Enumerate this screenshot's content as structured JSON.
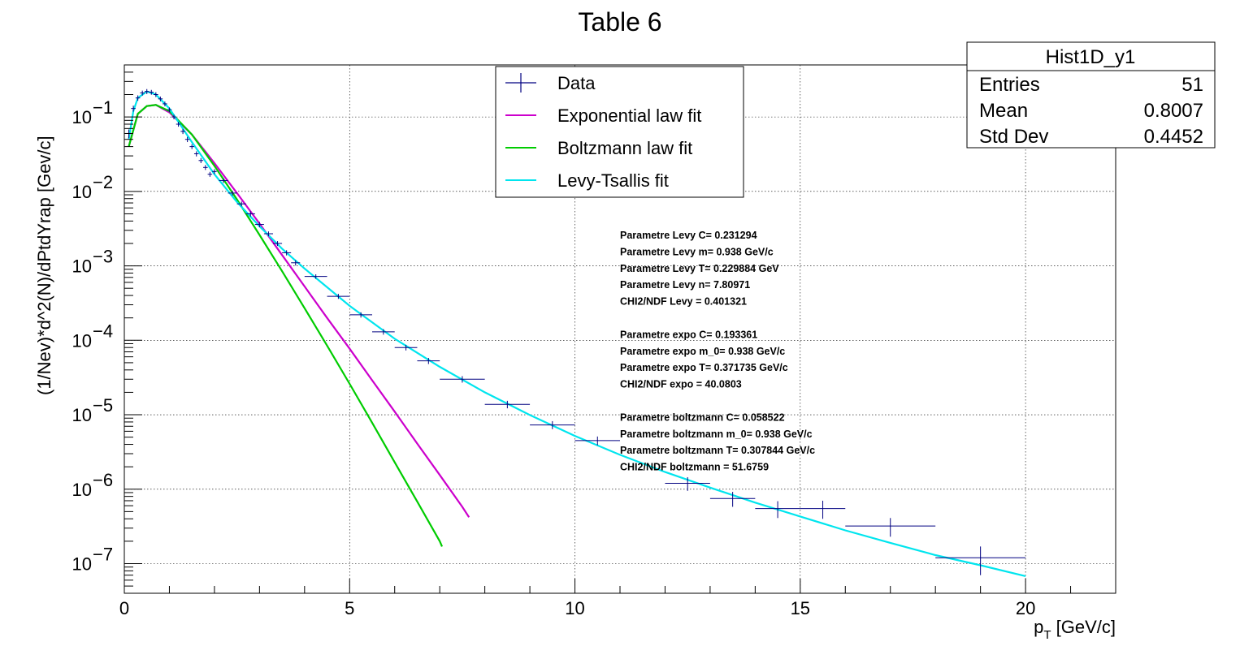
{
  "chart_data": {
    "type": "scatter",
    "title": "Table 6",
    "xlabel": "p",
    "xlabel_sub": "T",
    "xlabel_unit": " [GeV/c]",
    "ylabel": "(1/Nev)*d^2(N)/dPtdYrap  [Gev/c]",
    "xlim": [
      0,
      22
    ],
    "ylim": [
      4e-08,
      0.5
    ],
    "yscale": "log",
    "grid": true,
    "x_ticks": [
      0,
      5,
      10,
      15,
      20
    ],
    "x_tick_labels": [
      "0",
      "5",
      "10",
      "15",
      "20"
    ],
    "y_ticks": [
      1e-07,
      1e-06,
      1e-05,
      0.0001,
      0.001,
      0.01,
      0.1
    ],
    "y_tick_mantissa": [
      "10",
      "10",
      "10",
      "10",
      "10",
      "10",
      "10"
    ],
    "y_tick_exponents": [
      "−7",
      "−6",
      "−5",
      "−4",
      "−3",
      "−2",
      "−1"
    ],
    "legend": {
      "position": "top-center",
      "entries": [
        {
          "label": "Data",
          "color": "#000080",
          "kind": "marker"
        },
        {
          "label": "Exponential law fit",
          "color": "#cc00cc",
          "kind": "line"
        },
        {
          "label": "Boltzmann law fit",
          "color": "#00cc00",
          "kind": "line"
        },
        {
          "label": "Levy-Tsallis fit",
          "color": "#00e5ee",
          "kind": "line"
        }
      ]
    },
    "stats_box": {
      "title": "Hist1D_y1",
      "rows": [
        {
          "label": "Entries",
          "value": "51"
        },
        {
          "label": "Mean",
          "value": "0.8007"
        },
        {
          "label": "Std Dev",
          "value": "0.4452"
        }
      ]
    },
    "annotations": [
      "Parametre Levy C= 0.231294",
      "Parametre Levy m= 0.938 GeV/c",
      "Parametre Levy T= 0.229884 GeV",
      "Parametre Levy n= 7.80971",
      "CHI2/NDF Levy = 0.401321",
      "",
      "Parametre expo C= 0.193361",
      "Parametre expo m_0= 0.938 GeV/c",
      "Parametre expo T= 0.371735 GeV/c",
      "CHI2/NDF expo = 40.0803",
      "",
      "Parametre boltzmann C= 0.058522",
      "Parametre boltzmann m_0= 0.938 GeV/c",
      "Parametre boltzmann T= 0.307844 GeV/c",
      "CHI2/NDF boltzmann = 51.6759"
    ],
    "series": [
      {
        "name": "Data",
        "type": "errorbar",
        "color": "#000080",
        "points": [
          {
            "x": 0.1,
            "xerr": 0.05,
            "y": 0.06,
            "yerr": 0.008
          },
          {
            "x": 0.2,
            "xerr": 0.05,
            "y": 0.13,
            "yerr": 0.012
          },
          {
            "x": 0.3,
            "xerr": 0.05,
            "y": 0.18,
            "yerr": 0.015
          },
          {
            "x": 0.4,
            "xerr": 0.05,
            "y": 0.21,
            "yerr": 0.016
          },
          {
            "x": 0.5,
            "xerr": 0.05,
            "y": 0.22,
            "yerr": 0.017
          },
          {
            "x": 0.6,
            "xerr": 0.05,
            "y": 0.215,
            "yerr": 0.016
          },
          {
            "x": 0.7,
            "xerr": 0.05,
            "y": 0.2,
            "yerr": 0.015
          },
          {
            "x": 0.8,
            "xerr": 0.05,
            "y": 0.175,
            "yerr": 0.013
          },
          {
            "x": 0.9,
            "xerr": 0.05,
            "y": 0.15,
            "yerr": 0.011
          },
          {
            "x": 1.0,
            "xerr": 0.05,
            "y": 0.125,
            "yerr": 0.009
          },
          {
            "x": 1.1,
            "xerr": 0.05,
            "y": 0.1,
            "yerr": 0.007
          },
          {
            "x": 1.2,
            "xerr": 0.05,
            "y": 0.08,
            "yerr": 0.006
          },
          {
            "x": 1.3,
            "xerr": 0.05,
            "y": 0.064,
            "yerr": 0.005
          },
          {
            "x": 1.4,
            "xerr": 0.05,
            "y": 0.05,
            "yerr": 0.004
          },
          {
            "x": 1.5,
            "xerr": 0.05,
            "y": 0.04,
            "yerr": 0.003
          },
          {
            "x": 1.6,
            "xerr": 0.05,
            "y": 0.032,
            "yerr": 0.0025
          },
          {
            "x": 1.7,
            "xerr": 0.05,
            "y": 0.026,
            "yerr": 0.002
          },
          {
            "x": 1.8,
            "xerr": 0.05,
            "y": 0.021,
            "yerr": 0.0016
          },
          {
            "x": 1.9,
            "xerr": 0.05,
            "y": 0.017,
            "yerr": 0.0013
          },
          {
            "x": 2.0,
            "xerr": 0.05,
            "y": 0.0185,
            "yerr": 0.0014
          },
          {
            "x": 2.2,
            "xerr": 0.1,
            "y": 0.014,
            "yerr": 0.001
          },
          {
            "x": 2.4,
            "xerr": 0.1,
            "y": 0.0095,
            "yerr": 0.0007
          },
          {
            "x": 2.6,
            "xerr": 0.1,
            "y": 0.0068,
            "yerr": 0.0005
          },
          {
            "x": 2.8,
            "xerr": 0.1,
            "y": 0.005,
            "yerr": 0.0004
          },
          {
            "x": 3.0,
            "xerr": 0.1,
            "y": 0.0036,
            "yerr": 0.0003
          },
          {
            "x": 3.2,
            "xerr": 0.1,
            "y": 0.0027,
            "yerr": 0.0002
          },
          {
            "x": 3.4,
            "xerr": 0.1,
            "y": 0.002,
            "yerr": 0.00015
          },
          {
            "x": 3.6,
            "xerr": 0.1,
            "y": 0.0015,
            "yerr": 0.00012
          },
          {
            "x": 3.8,
            "xerr": 0.1,
            "y": 0.0011,
            "yerr": 9e-05
          },
          {
            "x": 4.25,
            "xerr": 0.25,
            "y": 0.00072,
            "yerr": 5e-05
          },
          {
            "x": 4.75,
            "xerr": 0.25,
            "y": 0.00039,
            "yerr": 3e-05
          },
          {
            "x": 5.25,
            "xerr": 0.25,
            "y": 0.00022,
            "yerr": 1.8e-05
          },
          {
            "x": 5.75,
            "xerr": 0.25,
            "y": 0.00013,
            "yerr": 1.1e-05
          },
          {
            "x": 6.25,
            "xerr": 0.25,
            "y": 8e-05,
            "yerr": 7e-06
          },
          {
            "x": 6.75,
            "xerr": 0.25,
            "y": 5.3e-05,
            "yerr": 5e-06
          },
          {
            "x": 7.5,
            "xerr": 0.5,
            "y": 3e-05,
            "yerr": 3e-06
          },
          {
            "x": 8.5,
            "xerr": 0.5,
            "y": 1.38e-05,
            "yerr": 1.6e-06
          },
          {
            "x": 9.5,
            "xerr": 0.5,
            "y": 7.3e-06,
            "yerr": 9e-07
          },
          {
            "x": 10.5,
            "xerr": 0.5,
            "y": 4.5e-06,
            "yerr": 6e-07
          },
          {
            "x": 12.5,
            "xerr": 0.5,
            "y": 1.2e-06,
            "yerr": 2.5e-07
          },
          {
            "x": 13.5,
            "xerr": 0.5,
            "y": 7.5e-07,
            "yerr": 1.7e-07
          },
          {
            "x": 14.5,
            "xerr": 0.5,
            "y": 5.5e-07,
            "yerr": 1.4e-07
          },
          {
            "x": 15.5,
            "xerr": 0.5,
            "y": 5.5e-07,
            "yerr": 1.5e-07
          },
          {
            "x": 17.0,
            "xerr": 1.0,
            "y": 3.2e-07,
            "yerr": 9e-08
          },
          {
            "x": 19.0,
            "xerr": 1.0,
            "y": 1.2e-07,
            "yerr": 5e-08
          }
        ]
      },
      {
        "name": "Exponential law fit",
        "type": "line",
        "color": "#cc00cc",
        "points": [
          {
            "x": 0.1,
            "y": 0.04
          },
          {
            "x": 0.3,
            "y": 0.11
          },
          {
            "x": 0.5,
            "y": 0.14
          },
          {
            "x": 0.7,
            "y": 0.145
          },
          {
            "x": 1.0,
            "y": 0.115
          },
          {
            "x": 1.5,
            "y": 0.058
          },
          {
            "x": 2.0,
            "y": 0.024
          },
          {
            "x": 2.5,
            "y": 0.0095
          },
          {
            "x": 3.0,
            "y": 0.0037
          },
          {
            "x": 3.5,
            "y": 0.0014
          },
          {
            "x": 4.0,
            "y": 0.00053
          },
          {
            "x": 4.5,
            "y": 0.0002
          },
          {
            "x": 5.0,
            "y": 7.7e-05
          },
          {
            "x": 5.5,
            "y": 2.9e-05
          },
          {
            "x": 6.0,
            "y": 1.1e-05
          },
          {
            "x": 6.5,
            "y": 4.1e-06
          },
          {
            "x": 7.0,
            "y": 1.55e-06
          },
          {
            "x": 7.5,
            "y": 5.8e-07
          },
          {
            "x": 7.65,
            "y": 4.2e-07
          }
        ]
      },
      {
        "name": "Boltzmann law fit",
        "type": "line",
        "color": "#00cc00",
        "points": [
          {
            "x": 0.1,
            "y": 0.04
          },
          {
            "x": 0.3,
            "y": 0.11
          },
          {
            "x": 0.5,
            "y": 0.14
          },
          {
            "x": 0.7,
            "y": 0.145
          },
          {
            "x": 1.0,
            "y": 0.12
          },
          {
            "x": 1.5,
            "y": 0.058
          },
          {
            "x": 2.0,
            "y": 0.022
          },
          {
            "x": 2.5,
            "y": 0.0078
          },
          {
            "x": 3.0,
            "y": 0.0026
          },
          {
            "x": 3.5,
            "y": 0.00085
          },
          {
            "x": 4.0,
            "y": 0.00027
          },
          {
            "x": 4.5,
            "y": 8.5e-05
          },
          {
            "x": 5.0,
            "y": 2.6e-05
          },
          {
            "x": 5.5,
            "y": 7.8e-06
          },
          {
            "x": 6.0,
            "y": 2.3e-06
          },
          {
            "x": 6.5,
            "y": 6.8e-07
          },
          {
            "x": 7.0,
            "y": 2e-07
          },
          {
            "x": 7.05,
            "y": 1.7e-07
          }
        ]
      },
      {
        "name": "Levy-Tsallis fit",
        "type": "line",
        "color": "#00e5ee",
        "points": [
          {
            "x": 0.1,
            "y": 0.05
          },
          {
            "x": 0.2,
            "y": 0.12
          },
          {
            "x": 0.3,
            "y": 0.18
          },
          {
            "x": 0.5,
            "y": 0.22
          },
          {
            "x": 0.7,
            "y": 0.2
          },
          {
            "x": 1.0,
            "y": 0.13
          },
          {
            "x": 1.5,
            "y": 0.046
          },
          {
            "x": 2.0,
            "y": 0.017
          },
          {
            "x": 2.5,
            "y": 0.0072
          },
          {
            "x": 3.0,
            "y": 0.0034
          },
          {
            "x": 3.5,
            "y": 0.0017
          },
          {
            "x": 4.0,
            "y": 0.00092
          },
          {
            "x": 5.0,
            "y": 0.00029
          },
          {
            "x": 6.0,
            "y": 0.000105
          },
          {
            "x": 7.0,
            "y": 4.4e-05
          },
          {
            "x": 8.0,
            "y": 2e-05
          },
          {
            "x": 9.0,
            "y": 9.9e-06
          },
          {
            "x": 10.0,
            "y": 5.2e-06
          },
          {
            "x": 11.0,
            "y": 2.9e-06
          },
          {
            "x": 12.0,
            "y": 1.7e-06
          },
          {
            "x": 13.0,
            "y": 1.05e-06
          },
          {
            "x": 14.0,
            "y": 6.6e-07
          },
          {
            "x": 15.0,
            "y": 4.3e-07
          },
          {
            "x": 16.0,
            "y": 2.8e-07
          },
          {
            "x": 17.0,
            "y": 1.9e-07
          },
          {
            "x": 18.0,
            "y": 1.3e-07
          },
          {
            "x": 19.0,
            "y": 9.5e-08
          },
          {
            "x": 20.0,
            "y": 6.8e-08
          }
        ]
      }
    ]
  }
}
